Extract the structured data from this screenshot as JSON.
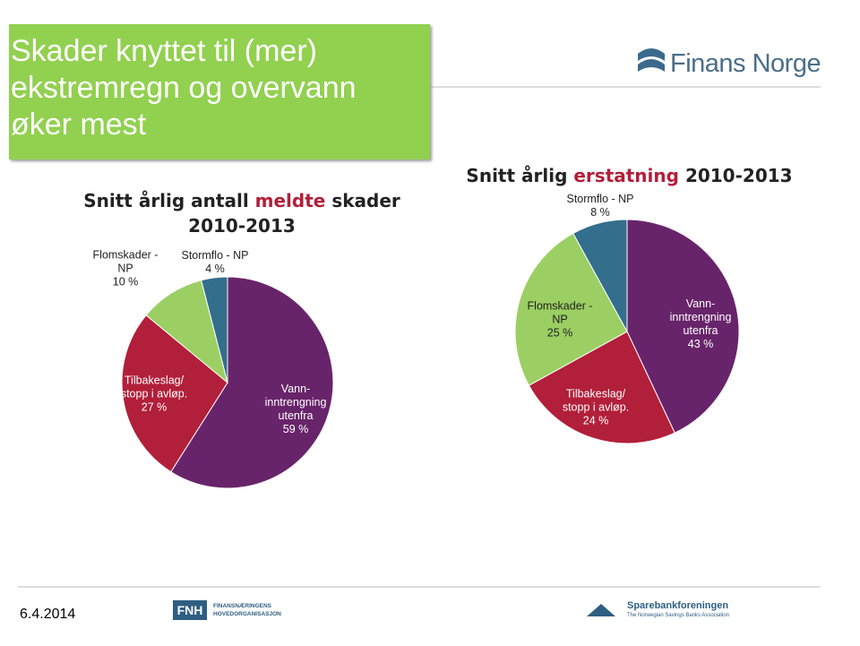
{
  "header": {
    "title": "Skader knyttet til (mer) ekstremregn og overvann øker mest",
    "logo": "Finans Norge"
  },
  "chart_data": [
    {
      "type": "pie",
      "title": [
        "Snitt årlig antall",
        "meldte",
        "skader 2010-2013"
      ],
      "categories": [
        "Vann-inntrengning utenfra",
        "Tilbakeslag/ stopp i avløp.",
        "Flomskader - NP",
        "Stormflo - NP"
      ],
      "values": [
        59,
        27,
        10,
        4
      ],
      "value_labels": [
        "59 %",
        "27 %",
        "10 %",
        "4 %"
      ],
      "colors": [
        "#68246a",
        "#b21f3a",
        "#9bcf63",
        "#336e8c"
      ]
    },
    {
      "type": "pie",
      "title": [
        "Snitt årlig",
        "erstatning",
        "2010-2013"
      ],
      "categories": [
        "Vann-inntrengning utenfra",
        "Tilbakeslag/ stopp i avløp.",
        "Flomskader - NP",
        "Stormflo - NP"
      ],
      "values": [
        43,
        24,
        25,
        8
      ],
      "value_labels": [
        "43 %",
        "24 %",
        "25 %",
        "8 %"
      ],
      "colors": [
        "#68246a",
        "#b21f3a",
        "#9bcf63",
        "#336e8c"
      ]
    }
  ],
  "footer": {
    "date": "6.4.2014",
    "fnh": "FNH",
    "fnh_sub": "FINANSNÆRINGENS HOVEDORGANISASJON",
    "sb": "Sparebankforeningen",
    "sb_sub": "The Norwegian Savings Banks Association"
  }
}
